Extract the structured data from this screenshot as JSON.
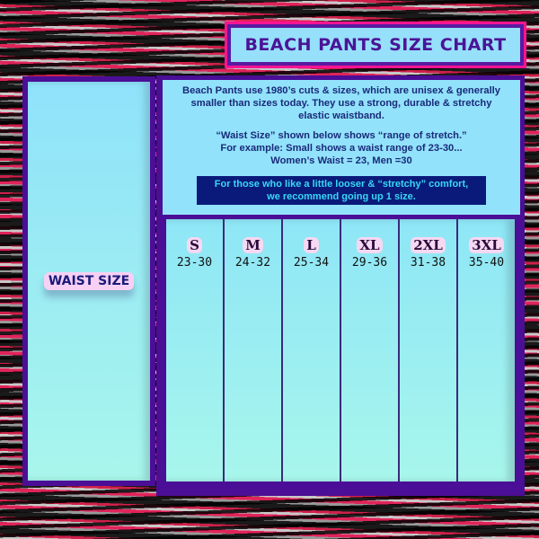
{
  "title": "BEACH PANTS SIZE CHART",
  "left_label": "WAIST SIZE",
  "info": {
    "paragraph1": "Beach Pants use 1980’s cuts & sizes, which are unisex  & generally smaller than sizes today. They use a strong, durable & stretchy elastic waistband.",
    "line1": "“Waist Size” shown below shows “range of stretch.”",
    "line2": "For example: Small shows a waist range of 23-30...",
    "line3": "Women’s Waist = 23, Men =30",
    "callout1": "For those who like a little looser & “stretchy” comfort,",
    "callout2": "we recommend going up 1 size."
  },
  "sizes": [
    {
      "size": "S",
      "range": "23-30"
    },
    {
      "size": "M",
      "range": "24-32"
    },
    {
      "size": "L",
      "range": "25-34"
    },
    {
      "size": "XL",
      "range": "29-36"
    },
    {
      "size": "2XL",
      "range": "31-38"
    },
    {
      "size": "3XL",
      "range": "35-40"
    }
  ],
  "colors": {
    "frame": "#4b0e96",
    "panel": "#92e2fb",
    "accent": "#ff1493",
    "callout_bg": "#0a1a7a"
  }
}
